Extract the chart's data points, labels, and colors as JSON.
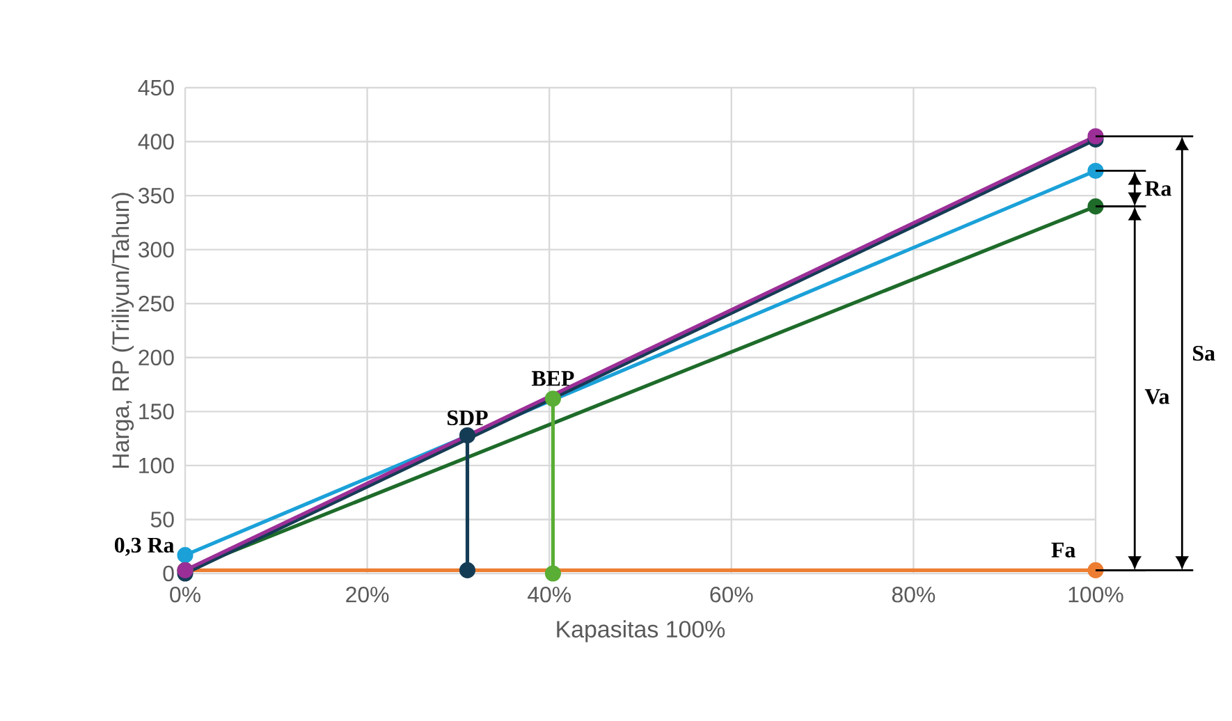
{
  "chart_data": {
    "type": "line",
    "xlabel": "Kapasitas 100%",
    "ylabel": "Harga, RP (Triliyun/Tahun)",
    "xlim": [
      0,
      100
    ],
    "ylim": [
      0,
      450
    ],
    "xticks": [
      {
        "value": 0,
        "label": "0%"
      },
      {
        "value": 20,
        "label": "20%"
      },
      {
        "value": 40,
        "label": "40%"
      },
      {
        "value": 60,
        "label": "60%"
      },
      {
        "value": 80,
        "label": "80%"
      },
      {
        "value": 100,
        "label": "100%"
      }
    ],
    "yticks": [
      0,
      50,
      100,
      150,
      200,
      250,
      300,
      350,
      400,
      450
    ],
    "grid": true,
    "marker": "circle",
    "line_style": "solid",
    "series": [
      {
        "color": "#ed7d31",
        "x": [
          0,
          100
        ],
        "values": [
          3,
          3
        ]
      },
      {
        "color": "#1e6b2a",
        "x": [
          0,
          100
        ],
        "values": [
          3,
          340
        ]
      },
      {
        "color": "#1ba1d8",
        "x": [
          0,
          100
        ],
        "values": [
          17,
          373
        ]
      },
      {
        "color": "#153c55",
        "x": [
          0,
          100
        ],
        "values": [
          0,
          402
        ]
      },
      {
        "color": "#9b2f97",
        "x": [
          0,
          100
        ],
        "values": [
          3,
          405
        ]
      },
      {
        "color": "#153c55",
        "x": [
          31,
          31
        ],
        "values": [
          3,
          128
        ]
      },
      {
        "color": "#5aad35",
        "x": [
          40.4,
          40.4
        ],
        "values": [
          0,
          162
        ]
      }
    ],
    "annotations": [
      {
        "text": "0,3 Ra",
        "x": 0,
        "y": 17
      },
      {
        "text": "SDP",
        "x": 31,
        "y": 128
      },
      {
        "text": "BEP",
        "x": 40.4,
        "y": 162
      },
      {
        "text": "Fa",
        "x": 100,
        "y": 3
      },
      "Ra",
      "Va",
      "Sa"
    ]
  }
}
